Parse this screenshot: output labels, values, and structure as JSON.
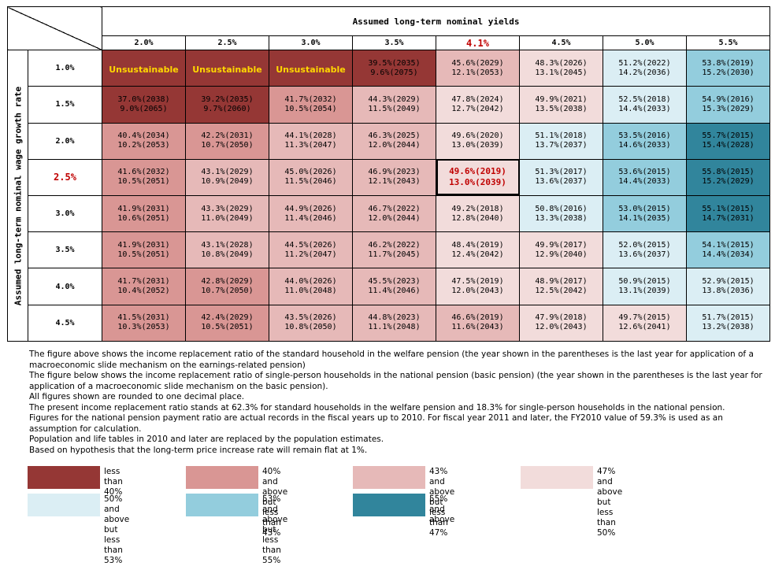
{
  "header": {
    "yields_title": "Assumed long-term nominal yields",
    "growth_title": "Assumed long-term nominal wage growth rate",
    "yields": [
      {
        "label": "2.0%",
        "highlight": false
      },
      {
        "label": "2.5%",
        "highlight": false
      },
      {
        "label": "3.0%",
        "highlight": false
      },
      {
        "label": "3.5%",
        "highlight": false
      },
      {
        "label": "4.1%",
        "highlight": true
      },
      {
        "label": "4.5%",
        "highlight": false
      },
      {
        "label": "5.0%",
        "highlight": false
      },
      {
        "label": "5.5%",
        "highlight": false
      }
    ]
  },
  "colors": {
    "lt40": "#953735",
    "40to43": "#d99694",
    "43to47": "#e6b9b8",
    "47to50": "#f2dcdb",
    "50to53": "#dbeef4",
    "53to55": "#93cddd",
    "ge55": "#31859c"
  },
  "rows": [
    {
      "growth": "1.0%",
      "highlight": false,
      "cells": [
        {
          "unsustainable": "Unsustainable",
          "cat": "lt40"
        },
        {
          "unsustainable": "Unsustainable",
          "cat": "lt40"
        },
        {
          "unsustainable": "Unsustainable",
          "cat": "lt40"
        },
        {
          "top": "39.5%(2035)",
          "bottom": "9.6%(2075)",
          "cat": "lt40"
        },
        {
          "top": "45.6%(2029)",
          "bottom": "12.1%(2053)",
          "cat": "43to47"
        },
        {
          "top": "48.3%(2026)",
          "bottom": "13.1%(2045)",
          "cat": "47to50"
        },
        {
          "top": "51.2%(2022)",
          "bottom": "14.2%(2036)",
          "cat": "50to53"
        },
        {
          "top": "53.8%(2019)",
          "bottom": "15.2%(2030)",
          "cat": "53to55"
        }
      ]
    },
    {
      "growth": "1.5%",
      "highlight": false,
      "cells": [
        {
          "top": "37.0%(2038)",
          "bottom": "9.0%(2065)",
          "cat": "lt40"
        },
        {
          "top": "39.2%(2035)",
          "bottom": "9.7%(2060)",
          "cat": "lt40"
        },
        {
          "top": "41.7%(2032)",
          "bottom": "10.5%(2054)",
          "cat": "40to43"
        },
        {
          "top": "44.3%(2029)",
          "bottom": "11.5%(2049)",
          "cat": "43to47"
        },
        {
          "top": "47.8%(2024)",
          "bottom": "12.7%(2042)",
          "cat": "47to50"
        },
        {
          "top": "49.9%(2021)",
          "bottom": "13.5%(2038)",
          "cat": "47to50"
        },
        {
          "top": "52.5%(2018)",
          "bottom": "14.4%(2033)",
          "cat": "50to53"
        },
        {
          "top": "54.9%(2016)",
          "bottom": "15.3%(2029)",
          "cat": "53to55"
        }
      ]
    },
    {
      "growth": "2.0%",
      "highlight": false,
      "cells": [
        {
          "top": "40.4%(2034)",
          "bottom": "10.2%(2053)",
          "cat": "40to43"
        },
        {
          "top": "42.2%(2031)",
          "bottom": "10.7%(2050)",
          "cat": "40to43"
        },
        {
          "top": "44.1%(2028)",
          "bottom": "11.3%(2047)",
          "cat": "43to47"
        },
        {
          "top": "46.3%(2025)",
          "bottom": "12.0%(2044)",
          "cat": "43to47"
        },
        {
          "top": "49.6%(2020)",
          "bottom": "13.0%(2039)",
          "cat": "47to50"
        },
        {
          "top": "51.1%(2018)",
          "bottom": "13.7%(2037)",
          "cat": "50to53"
        },
        {
          "top": "53.5%(2016)",
          "bottom": "14.6%(2033)",
          "cat": "53to55"
        },
        {
          "top": "55.7%(2015)",
          "bottom": "15.4%(2028)",
          "cat": "ge55"
        }
      ]
    },
    {
      "growth": "2.5%",
      "highlight": true,
      "cells": [
        {
          "top": "41.6%(2032)",
          "bottom": "10.5%(2051)",
          "cat": "40to43"
        },
        {
          "top": "43.1%(2029)",
          "bottom": "10.9%(2049)",
          "cat": "43to47"
        },
        {
          "top": "45.0%(2026)",
          "bottom": "11.5%(2046)",
          "cat": "43to47"
        },
        {
          "top": "46.9%(2023)",
          "bottom": "12.1%(2043)",
          "cat": "43to47"
        },
        {
          "top": "49.6%(2019)",
          "bottom": "13.0%(2039)",
          "cat": "47to50",
          "highlight": true
        },
        {
          "top": "51.3%(2017)",
          "bottom": "13.6%(2037)",
          "cat": "50to53"
        },
        {
          "top": "53.6%(2015)",
          "bottom": "14.4%(2033)",
          "cat": "53to55"
        },
        {
          "top": "55.8%(2015)",
          "bottom": "15.2%(2029)",
          "cat": "ge55"
        }
      ]
    },
    {
      "growth": "3.0%",
      "highlight": false,
      "cells": [
        {
          "top": "41.9%(2031)",
          "bottom": "10.6%(2051)",
          "cat": "40to43"
        },
        {
          "top": "43.3%(2029)",
          "bottom": "11.0%(2049)",
          "cat": "43to47"
        },
        {
          "top": "44.9%(2026)",
          "bottom": "11.4%(2046)",
          "cat": "43to47"
        },
        {
          "top": "46.7%(2022)",
          "bottom": "12.0%(2044)",
          "cat": "43to47"
        },
        {
          "top": "49.2%(2018)",
          "bottom": "12.8%(2040)",
          "cat": "47to50"
        },
        {
          "top": "50.8%(2016)",
          "bottom": "13.3%(2038)",
          "cat": "50to53"
        },
        {
          "top": "53.0%(2015)",
          "bottom": "14.1%(2035)",
          "cat": "53to55"
        },
        {
          "top": "55.1%(2015)",
          "bottom": "14.7%(2031)",
          "cat": "ge55"
        }
      ]
    },
    {
      "growth": "3.5%",
      "highlight": false,
      "cells": [
        {
          "top": "41.9%(2031)",
          "bottom": "10.5%(2051)",
          "cat": "40to43"
        },
        {
          "top": "43.1%(2028)",
          "bottom": "10.8%(2049)",
          "cat": "43to47"
        },
        {
          "top": "44.5%(2026)",
          "bottom": "11.2%(2047)",
          "cat": "43to47"
        },
        {
          "top": "46.2%(2022)",
          "bottom": "11.7%(2045)",
          "cat": "43to47"
        },
        {
          "top": "48.4%(2019)",
          "bottom": "12.4%(2042)",
          "cat": "47to50"
        },
        {
          "top": "49.9%(2017)",
          "bottom": "12.9%(2040)",
          "cat": "47to50"
        },
        {
          "top": "52.0%(2015)",
          "bottom": "13.6%(2037)",
          "cat": "50to53"
        },
        {
          "top": "54.1%(2015)",
          "bottom": "14.4%(2034)",
          "cat": "53to55"
        }
      ]
    },
    {
      "growth": "4.0%",
      "highlight": false,
      "cells": [
        {
          "top": "41.7%(2031)",
          "bottom": "10.4%(2052)",
          "cat": "40to43"
        },
        {
          "top": "42.8%(2029)",
          "bottom": "10.7%(2050)",
          "cat": "40to43"
        },
        {
          "top": "44.0%(2026)",
          "bottom": "11.0%(2048)",
          "cat": "43to47"
        },
        {
          "top": "45.5%(2023)",
          "bottom": "11.4%(2046)",
          "cat": "43to47"
        },
        {
          "top": "47.5%(2019)",
          "bottom": "12.0%(2043)",
          "cat": "47to50"
        },
        {
          "top": "48.9%(2017)",
          "bottom": "12.5%(2042)",
          "cat": "47to50"
        },
        {
          "top": "50.9%(2015)",
          "bottom": "13.1%(2039)",
          "cat": "50to53"
        },
        {
          "top": "52.9%(2015)",
          "bottom": "13.8%(2036)",
          "cat": "50to53"
        }
      ]
    },
    {
      "growth": "4.5%",
      "highlight": false,
      "cells": [
        {
          "top": "41.5%(2031)",
          "bottom": "10.3%(2053)",
          "cat": "40to43"
        },
        {
          "top": "42.4%(2029)",
          "bottom": "10.5%(2051)",
          "cat": "40to43"
        },
        {
          "top": "43.5%(2026)",
          "bottom": "10.8%(2050)",
          "cat": "43to47"
        },
        {
          "top": "44.8%(2023)",
          "bottom": "11.1%(2048)",
          "cat": "43to47"
        },
        {
          "top": "46.6%(2019)",
          "bottom": "11.6%(2043)",
          "cat": "43to47"
        },
        {
          "top": "47.9%(2018)",
          "bottom": "12.0%(2043)",
          "cat": "47to50"
        },
        {
          "top": "49.7%(2015)",
          "bottom": "12.6%(2041)",
          "cat": "47to50"
        },
        {
          "top": "51.7%(2015)",
          "bottom": "13.2%(2038)",
          "cat": "50to53"
        }
      ]
    }
  ],
  "notes": [
    "The figure above shows the income replacement ratio of the standard household in the welfare pension (the year shown in the parentheses is the last year for application of a macroeconomic slide mechanism on the earnings-related pension)",
    "The figure below shows the income replacement ratio of single-person households in the national pension (basic pension) (the year shown in the parentheses is the last year for application of a macroeconomic slide mechanism on the basic pension).",
    "All figures shown are rounded to one decimal place.",
    "The present income replacement ratio stands at 62.3% for standard households in the welfare pension and 18.3% for single-person households in the national pension.",
    "Figures for the national pension payment ratio are actual records in the fiscal years up to 2010. For fiscal year 2011 and later, the FY2010 value of 59.3% is used as an assumption for calculation.",
    "Population and life tables in 2010 and later are replaced by the population estimates.",
    "Based on hypothesis that the long-term price increase rate will remain flat at 1%."
  ],
  "legend": [
    {
      "cat": "lt40",
      "label": "less than 40%"
    },
    {
      "cat": "40to43",
      "label": "40% and above but\nless than 43%"
    },
    {
      "cat": "43to47",
      "label": "43% and above but\nless than 47%"
    },
    {
      "cat": "47to50",
      "label": "47% and above but\nless than 50%"
    },
    {
      "cat": "50to53",
      "label": "50% and above but\nless than 53%"
    },
    {
      "cat": "53to55",
      "label": "53% and above but\nless than 55%"
    },
    {
      "cat": "ge55",
      "label": "55% and above"
    }
  ]
}
